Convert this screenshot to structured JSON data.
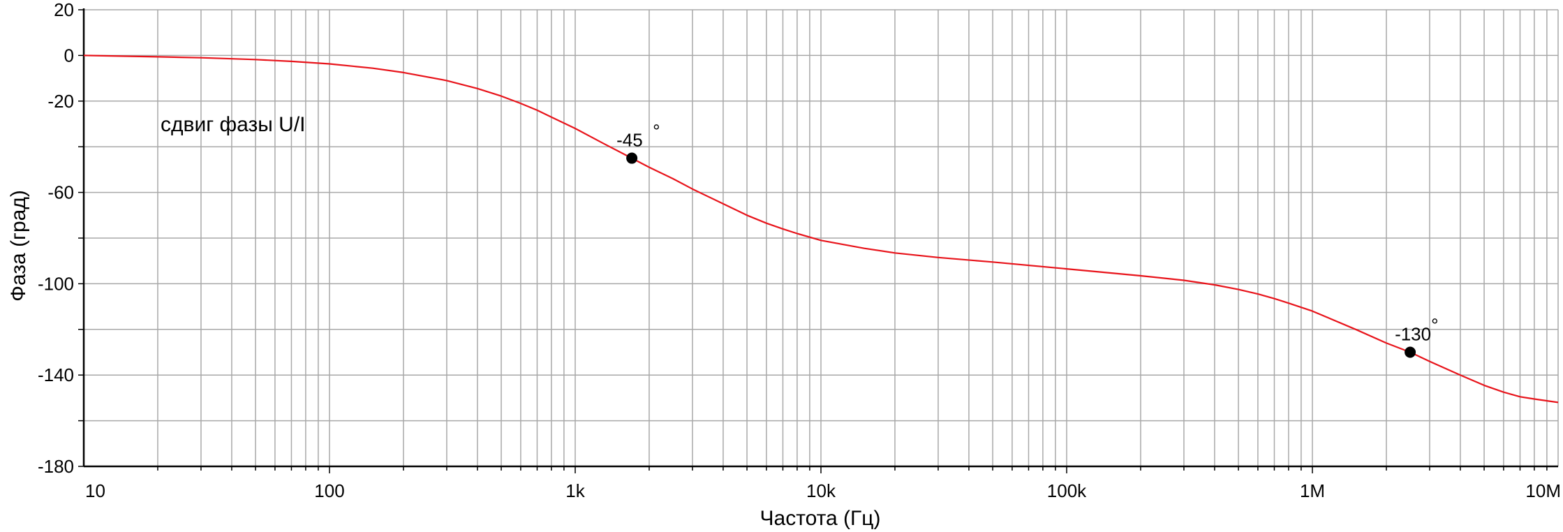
{
  "chart_data": {
    "type": "line",
    "title": "",
    "xlabel": "Частота (Гц)",
    "ylabel": "Фаза (град)",
    "x_scale": "log",
    "xlim": [
      10,
      10000000
    ],
    "ylim": [
      -180,
      20
    ],
    "grid": true,
    "x_ticks": [
      {
        "value": 10,
        "label": "10"
      },
      {
        "value": 100,
        "label": "100"
      },
      {
        "value": 1000,
        "label": "1k"
      },
      {
        "value": 10000,
        "label": "10k"
      },
      {
        "value": 100000,
        "label": "100k"
      },
      {
        "value": 1000000,
        "label": "1M"
      },
      {
        "value": 10000000,
        "label": "10M"
      }
    ],
    "y_ticks": [
      {
        "value": 20,
        "label": "20"
      },
      {
        "value": 0,
        "label": "0"
      },
      {
        "value": -20,
        "label": "-20"
      },
      {
        "value": -40,
        "label": ""
      },
      {
        "value": -60,
        "label": "-60"
      },
      {
        "value": -80,
        "label": ""
      },
      {
        "value": -100,
        "label": "-100"
      },
      {
        "value": -120,
        "label": ""
      },
      {
        "value": -140,
        "label": "-140"
      },
      {
        "value": -160,
        "label": ""
      },
      {
        "value": -180,
        "label": "-180"
      }
    ],
    "series": [
      {
        "label_text": "сдвиг фазы U/I",
        "color": "#e8141b",
        "x": [
          10,
          20,
          30,
          50,
          70,
          100,
          150,
          200,
          300,
          400,
          500,
          600,
          700,
          800,
          1000,
          1300,
          1700,
          2000,
          2500,
          3000,
          4000,
          5000,
          6000,
          7000,
          8000,
          10000,
          15000,
          20000,
          30000,
          50000,
          100000,
          200000,
          300000,
          400000,
          500000,
          600000,
          700000,
          800000,
          1000000,
          1500000,
          2000000,
          2500000,
          3000000,
          4000000,
          5000000,
          6000000,
          7000000,
          8000000,
          10000000
        ],
        "y": [
          0,
          -0.6,
          -1,
          -1.8,
          -2.6,
          -3.7,
          -5.6,
          -7.5,
          -11,
          -14.5,
          -17.8,
          -21,
          -24,
          -27,
          -32,
          -38.5,
          -45,
          -49,
          -54,
          -58.5,
          -65,
          -70,
          -73.5,
          -76,
          -78,
          -81,
          -84.5,
          -86.5,
          -88.5,
          -90.5,
          -93.5,
          -96.5,
          -98.5,
          -100.5,
          -102.5,
          -104.5,
          -106.5,
          -108.5,
          -112,
          -120,
          -126,
          -130,
          -134,
          -140,
          -144.5,
          -147.5,
          -149.5,
          -150.5,
          -152
        ]
      }
    ],
    "annotations": [
      {
        "x": 1700,
        "y": -45,
        "text": "-45",
        "unit": "°"
      },
      {
        "x": 2500000,
        "y": -130,
        "text": "-130",
        "unit": "°"
      }
    ]
  }
}
